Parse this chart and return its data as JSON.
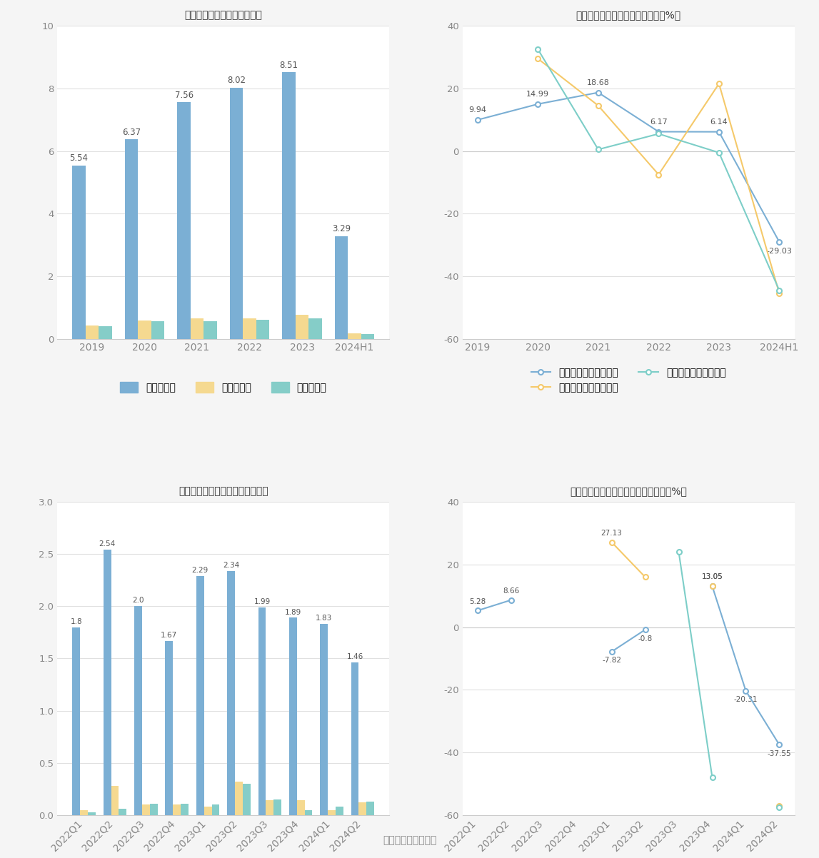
{
  "bg_color": "#f5f5f5",
  "panel_color": "#ffffff",
  "chart1": {
    "title": "历年营收、净利情况（亿元）",
    "categories": [
      "2019",
      "2020",
      "2021",
      "2022",
      "2023",
      "2024H1"
    ],
    "revenue": [
      5.54,
      6.37,
      7.56,
      8.02,
      8.51,
      3.29
    ],
    "net_profit": [
      0.42,
      0.6,
      0.65,
      0.65,
      0.78,
      0.18
    ],
    "deducted_profit": [
      0.4,
      0.57,
      0.57,
      0.62,
      0.65,
      0.16
    ],
    "ylim": [
      0,
      10
    ],
    "yticks": [
      0,
      2,
      4,
      6,
      8,
      10
    ],
    "bar_color_revenue": "#7bafd4",
    "bar_color_net": "#f5d990",
    "bar_color_deducted": "#85cdc8",
    "legend_labels": [
      "营业总收入",
      "归母净利润",
      "扣非净利润"
    ]
  },
  "chart2": {
    "title": "历年营收、净利同比增长率情况（%）",
    "categories": [
      "2019",
      "2020",
      "2021",
      "2022",
      "2023",
      "2024H1"
    ],
    "revenue_growth": [
      9.94,
      14.99,
      18.68,
      6.17,
      6.14,
      -29.03
    ],
    "net_profit_growth": [
      null,
      29.5,
      14.5,
      -7.5,
      21.5,
      -45.5
    ],
    "deducted_growth": [
      null,
      32.5,
      0.5,
      5.5,
      -0.5,
      -44.5
    ],
    "ylim": [
      -60,
      40
    ],
    "yticks": [
      -60,
      -40,
      -20,
      0,
      20,
      40
    ],
    "line_color_revenue": "#7bafd4",
    "line_color_net": "#f5c96a",
    "line_color_deducted": "#7dcec8",
    "legend_labels": [
      "营业总收入同比增长率",
      "归母净利润同比增长率",
      "扣非净利润同比增长率"
    ],
    "label_points": [
      [
        0,
        9.94
      ],
      [
        1,
        14.99
      ],
      [
        2,
        18.68
      ],
      [
        3,
        6.17
      ],
      [
        4,
        6.14
      ],
      [
        5,
        -29.03
      ]
    ]
  },
  "chart3": {
    "title": "营收、净利季度变动情况（亿元）",
    "categories": [
      "2022Q1",
      "2022Q2",
      "2022Q3",
      "2022Q4",
      "2023Q1",
      "2023Q2",
      "2023Q3",
      "2023Q4",
      "2024Q1",
      "2024Q2"
    ],
    "revenue": [
      1.8,
      2.54,
      2.0,
      1.67,
      2.29,
      2.34,
      1.99,
      1.89,
      1.83,
      1.46
    ],
    "net_profit": [
      0.05,
      0.28,
      0.1,
      0.1,
      0.08,
      0.32,
      0.14,
      0.14,
      0.05,
      0.12
    ],
    "deducted_profit": [
      0.03,
      0.06,
      0.11,
      0.11,
      0.1,
      0.3,
      0.15,
      0.05,
      0.08,
      0.13
    ],
    "ylim": [
      0,
      3
    ],
    "yticks": [
      0,
      0.5,
      1.0,
      1.5,
      2.0,
      2.5,
      3.0
    ],
    "bar_color_revenue": "#7bafd4",
    "bar_color_net": "#f5d990",
    "bar_color_deducted": "#85cdc8",
    "legend_labels": [
      "营业总收入",
      "归母净利润",
      "扣非净利润"
    ]
  },
  "chart4": {
    "title": "营收、净利同比增长率季度变动情况（%）",
    "categories": [
      "2022Q1",
      "2022Q2",
      "2022Q3",
      "2022Q4",
      "2023Q1",
      "2023Q2",
      "2023Q3",
      "2023Q4",
      "2024Q1",
      "2024Q2"
    ],
    "revenue_growth": [
      5.28,
      8.66,
      null,
      null,
      -7.82,
      -0.8,
      null,
      13.05,
      -20.31,
      -37.55
    ],
    "net_profit_growth": [
      null,
      null,
      null,
      null,
      27.13,
      16.0,
      null,
      13.05,
      null,
      -57.0
    ],
    "deducted_growth": [
      null,
      null,
      null,
      null,
      null,
      null,
      24.0,
      -48.0,
      null,
      -57.5
    ],
    "ylim": [
      -60,
      40
    ],
    "yticks": [
      -60,
      -40,
      -20,
      0,
      20,
      40
    ],
    "line_color_revenue": "#7bafd4",
    "line_color_net": "#f5c96a",
    "line_color_deducted": "#7dcec8",
    "legend_labels": [
      "营业总收入同比增长率",
      "归母净利润同比增长率",
      "扣非净利润同比增长率"
    ],
    "label_points_rev": [
      [
        0,
        5.28
      ],
      [
        1,
        8.66
      ],
      [
        4,
        -7.82
      ],
      [
        5,
        -0.8
      ],
      [
        7,
        13.05
      ],
      [
        8,
        -20.31
      ],
      [
        9,
        -37.55
      ]
    ],
    "label_points_net": [
      [
        4,
        27.13
      ],
      [
        7,
        13.05
      ]
    ],
    "label_points_ded": []
  },
  "source_text": "数据来源：恒生聚源"
}
